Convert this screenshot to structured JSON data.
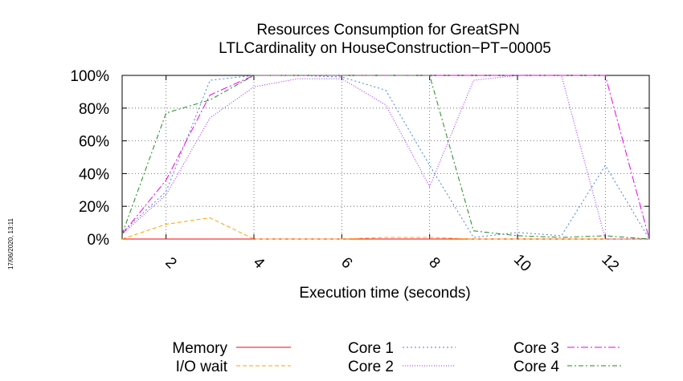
{
  "chart_data": {
    "type": "line",
    "title": "Resources Consumption for GreatSPN",
    "subtitle": "LTLCardinality on HouseConstruction−PT−00005",
    "xlabel": "Execution time (seconds)",
    "ylabel": "",
    "xlim": [
      1,
      13
    ],
    "ylim": [
      0,
      100
    ],
    "xticks": [
      2,
      4,
      6,
      8,
      10,
      12
    ],
    "yticks": [
      0,
      20,
      40,
      60,
      80,
      100
    ],
    "ytick_labels": [
      "0%",
      "20%",
      "40%",
      "60%",
      "80%",
      "100%"
    ],
    "grid": true,
    "legend_position": "bottom",
    "timestamp": "17/06/2020, 13:11",
    "x": [
      1,
      2,
      3,
      4,
      5,
      6,
      7,
      8,
      9,
      10,
      11,
      12,
      13
    ],
    "series": [
      {
        "name": "Memory",
        "color": "#ff0000",
        "dash": "",
        "values": [
          0,
          0,
          0,
          0,
          0,
          0,
          0,
          0,
          0,
          0,
          0,
          0,
          0
        ]
      },
      {
        "name": "I/O wait",
        "color": "#ffa500",
        "dash": "5,3",
        "values": [
          0,
          9,
          13,
          0,
          0,
          0,
          1,
          1,
          0,
          0,
          0,
          0,
          0
        ]
      },
      {
        "name": "Core 1",
        "color": "#4682d4",
        "dash": "2,3",
        "values": [
          4,
          29,
          97,
          100,
          100,
          99,
          91,
          45,
          1,
          4,
          2,
          45,
          0
        ]
      },
      {
        "name": "Core 2",
        "color": "#a020f0",
        "dash": "1,2",
        "values": [
          3,
          27,
          74,
          93,
          98,
          98,
          82,
          32,
          97,
          100,
          100,
          0,
          0
        ]
      },
      {
        "name": "Core 3",
        "color": "#ee00ee",
        "dash": "9,3,2,3",
        "values": [
          3,
          36,
          88,
          100,
          100,
          100,
          100,
          100,
          100,
          100,
          100,
          100,
          0
        ]
      },
      {
        "name": "Core 4",
        "color": "#228b22",
        "dash": "6,3,2,3",
        "values": [
          3,
          77,
          85,
          100,
          100,
          100,
          100,
          100,
          5,
          2,
          1,
          2,
          0
        ]
      }
    ]
  }
}
